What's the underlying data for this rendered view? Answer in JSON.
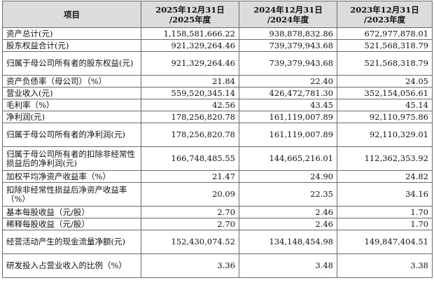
{
  "table": {
    "headers": [
      {
        "line1": "项目",
        "line2": ""
      },
      {
        "line1": "2025年12月31日",
        "line2": "/2025年度"
      },
      {
        "line1": "2024年12月31日",
        "line2": "/2024年度"
      },
      {
        "line1": "2023年12月31日",
        "line2": "/2023年度"
      }
    ],
    "rows": [
      {
        "label": "资产总计(元)",
        "v2025": "1,158,581,666.22",
        "v2024": "938,878,832.86",
        "v2023": "672,977,878.01"
      },
      {
        "label": "股东权益合计(元)",
        "v2025": "921,329,264.46",
        "v2024": "739,379,943.68",
        "v2023": "521,568,318.79"
      },
      {
        "label": "归属于母公司所有者的股东权益(元)",
        "v2025": "921,329,264.46",
        "v2024": "739,379,943.68",
        "v2023": "521,568,318.79"
      },
      {
        "label": "资产负债率（母公司）（%）",
        "v2025": "21.84",
        "v2024": "22.40",
        "v2023": "24.05"
      },
      {
        "label": "营业收入(元)",
        "v2025": "559,520,345.14",
        "v2024": "426,472,781.30",
        "v2023": "352,154,056.61"
      },
      {
        "label": "毛利率（%）",
        "v2025": "42.56",
        "v2024": "43.45",
        "v2023": "45.14"
      },
      {
        "label": "净利润(元)",
        "v2025": "178,256,820.78",
        "v2024": "161,119,007.89",
        "v2023": "92,110,975.86"
      },
      {
        "label": "归属于母公司所有者的净利润(元)",
        "v2025": "178,256,820.78",
        "v2024": "161,119,007.89",
        "v2023": "92,110,329.01"
      },
      {
        "label": "归属于母公司所有者的扣除非经常性损益后的净利润(元)",
        "v2025": "166,748,485.55",
        "v2024": "144,665,216.01",
        "v2023": "112,362,353.92"
      },
      {
        "label": "加权平均净资产收益率（%）",
        "v2025": "21.47",
        "v2024": "24.90",
        "v2023": "24.82"
      },
      {
        "label": "扣除非经常性损益后净资产收益率（%）",
        "v2025": "20.09",
        "v2024": "22.35",
        "v2023": "34.16"
      },
      {
        "label": "基本每股收益（元/股）",
        "v2025": "2.70",
        "v2024": "2.46",
        "v2023": "1.70"
      },
      {
        "label": "稀释每股收益（元/股）",
        "v2025": "2.70",
        "v2024": "2.46",
        "v2023": "1.70"
      },
      {
        "label": "经营活动产生的现金流量净额(元)",
        "v2025": "152,430,074.52",
        "v2024": "134,148,454.98",
        "v2023": "149,847,404.51"
      },
      {
        "label": "研发投入占营业收入的比例（%）",
        "v2025": "3.36",
        "v2024": "3.48",
        "v2023": "3.38"
      }
    ]
  }
}
